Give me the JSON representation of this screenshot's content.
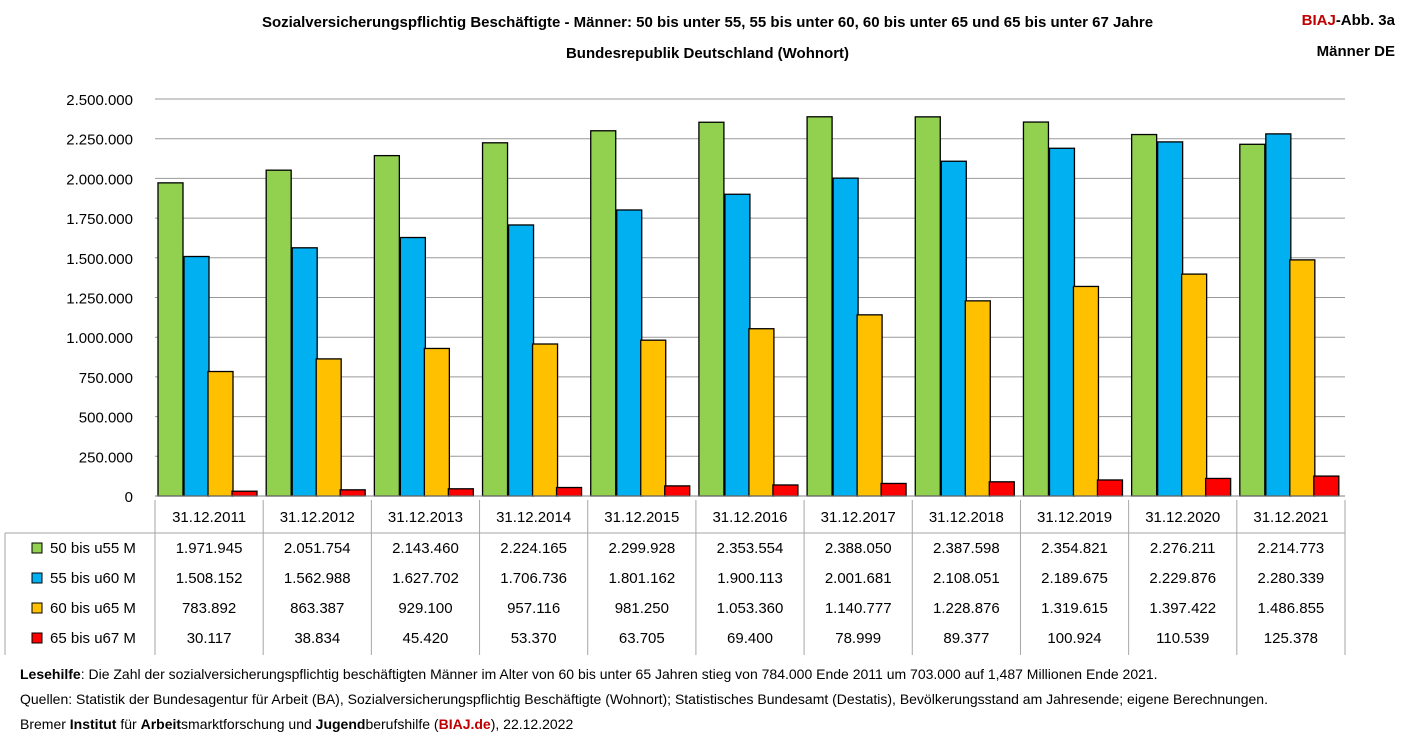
{
  "badge": {
    "brand": "BIAJ",
    "suffix": "-Abb. 3a",
    "subtitle": "Männer DE"
  },
  "chart_data": {
    "type": "bar",
    "title": "Sozialversicherungspflichtig Beschäftigte - Männer: 50 bis unter 55, 55 bis unter 60, 60 bis unter 65 und 65 bis unter 67 Jahre",
    "subtitle": "Bundesrepublik Deutschland (Wohnort)",
    "categories": [
      "31.12.2011",
      "31.12.2012",
      "31.12.2013",
      "31.12.2014",
      "31.12.2015",
      "31.12.2016",
      "31.12.2017",
      "31.12.2018",
      "31.12.2019",
      "31.12.2020",
      "31.12.2021"
    ],
    "ylim": [
      0,
      2500000
    ],
    "yticks": [
      0,
      250000,
      500000,
      750000,
      1000000,
      1250000,
      1500000,
      1750000,
      2000000,
      2250000,
      2500000
    ],
    "ytick_labels": [
      "0",
      "250.000",
      "500.000",
      "750.000",
      "1.000.000",
      "1.250.000",
      "1.500.000",
      "1.750.000",
      "2.000.000",
      "2.250.000",
      "2.500.000"
    ],
    "grid": true,
    "legend": "data-table",
    "series": [
      {
        "name": "50 bis u55 M",
        "color": "#92d050",
        "values": [
          1971945,
          2051754,
          2143460,
          2224165,
          2299928,
          2353554,
          2388050,
          2387598,
          2354821,
          2276211,
          2214773
        ],
        "labels": [
          "1.971.945",
          "2.051.754",
          "2.143.460",
          "2.224.165",
          "2.299.928",
          "2.353.554",
          "2.388.050",
          "2.387.598",
          "2.354.821",
          "2.276.211",
          "2.214.773"
        ]
      },
      {
        "name": "55 bis u60 M",
        "color": "#00b0f0",
        "values": [
          1508152,
          1562988,
          1627702,
          1706736,
          1801162,
          1900113,
          2001681,
          2108051,
          2189675,
          2229876,
          2280339
        ],
        "labels": [
          "1.508.152",
          "1.562.988",
          "1.627.702",
          "1.706.736",
          "1.801.162",
          "1.900.113",
          "2.001.681",
          "2.108.051",
          "2.189.675",
          "2.229.876",
          "2.280.339"
        ]
      },
      {
        "name": "60 bis u65 M",
        "color": "#ffc000",
        "values": [
          783892,
          863387,
          929100,
          957116,
          981250,
          1053360,
          1140777,
          1228876,
          1319615,
          1397422,
          1486855
        ],
        "labels": [
          "783.892",
          "863.387",
          "929.100",
          "957.116",
          "981.250",
          "1.053.360",
          "1.140.777",
          "1.228.876",
          "1.319.615",
          "1.397.422",
          "1.486.855"
        ]
      },
      {
        "name": "65 bis u67 M",
        "color": "#ff0000",
        "values": [
          30117,
          38834,
          45420,
          53370,
          63705,
          69400,
          78999,
          89377,
          100924,
          110539,
          125378
        ],
        "labels": [
          "30.117",
          "38.834",
          "45.420",
          "53.370",
          "63.705",
          "69.400",
          "78.999",
          "89.377",
          "100.924",
          "110.539",
          "125.378"
        ]
      }
    ]
  },
  "footer": {
    "lesehilfe_label": "Lesehilfe",
    "lesehilfe_text": ": Die Zahl der sozialversicherungspflichtig beschäftigten Männer im Alter von 60 bis unter 65 Jahren stieg von 784.000 Ende 2011 um 703.000 auf 1,487 Millionen Ende 2021.",
    "quellen": "Quellen: Statistik der Bundesagentur für Arbeit (BA), Sozialversicherungspflichtig Beschäftigte (Wohnort); Statistisches Bundesamt (Destatis), Bevölkerungsstand am Jahresende; eigene Berechnungen.",
    "inst_1": "Bremer ",
    "inst_2": "Institut",
    "inst_3": " für ",
    "inst_4": "Arbeit",
    "inst_5": "smarktforschung und ",
    "inst_6": "Jugend",
    "inst_7": "berufshilfe (",
    "inst_8": "BIAJ.de",
    "inst_9": "), 22.12.2022"
  }
}
